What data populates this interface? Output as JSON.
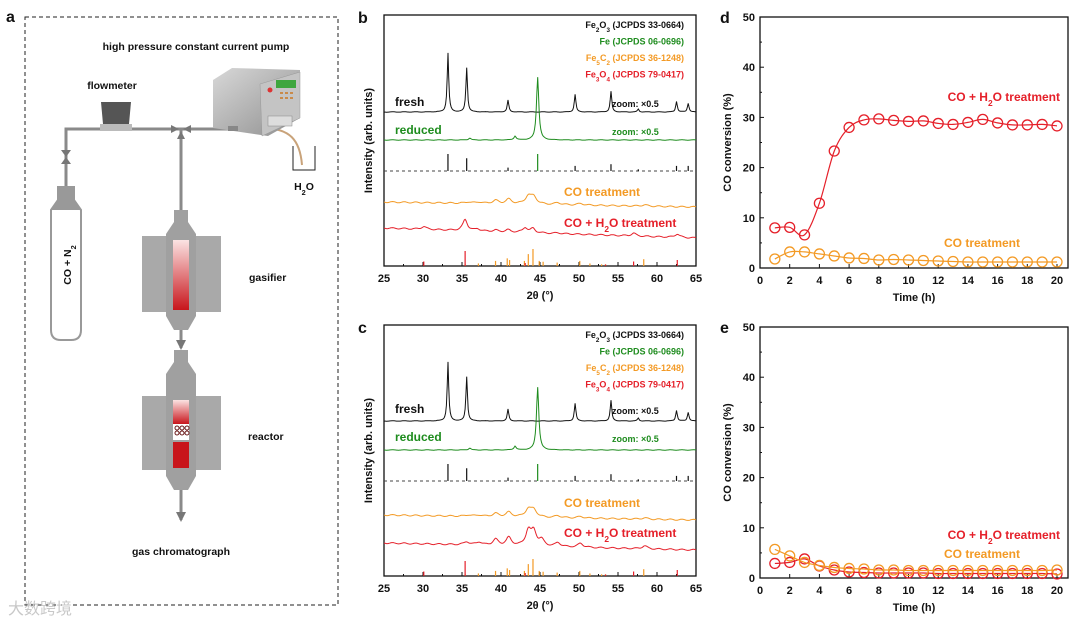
{
  "panel_letters": {
    "a": "a",
    "b": "b",
    "c": "c",
    "d": "d",
    "e": "e"
  },
  "diagram": {
    "pump": "high pressure constant current pump",
    "flowmeter": "flowmeter",
    "water": "H2O",
    "gas_cylinder": "CO + N2",
    "gasifier": "gasifier",
    "reactor": "reactor",
    "detector": "gas chromatograph"
  },
  "watermark": "大数跨境",
  "colors": {
    "black": "#111111",
    "green": "#1e8c1e",
    "orange": "#f39a25",
    "red": "#e5202a",
    "gray": "#9a9a9a"
  },
  "chart_data": [
    {
      "id": "b",
      "type": "line",
      "xlabel": "2θ (°)",
      "ylabel": "Intensity (arb. units)",
      "xlim": [
        25,
        65
      ],
      "xticks": [
        "25",
        "30",
        "35",
        "40",
        "45",
        "50",
        "55",
        "60",
        "65"
      ],
      "legend": [
        "Fe2O3 (JCPDS 33-0664)",
        "Fe (JCPDS 06-0696)",
        "Fe5C2 (JCPDS 36-1248)",
        "Fe3O4 (JCPDS 79-0417)"
      ],
      "series": [
        {
          "name": "fresh",
          "zoom": "zoom: ×0.5",
          "peaks": [
            [
              33.2,
              1.0
            ],
            [
              35.6,
              0.75
            ],
            [
              40.9,
              0.2
            ],
            [
              49.5,
              0.3
            ],
            [
              54.1,
              0.35
            ],
            [
              57.6,
              0.05
            ],
            [
              62.5,
              0.18
            ],
            [
              64.0,
              0.15
            ]
          ]
        },
        {
          "name": "reduced",
          "zoom": "zoom: ×0.5",
          "peaks": [
            [
              36.0,
              0.03
            ],
            [
              41.8,
              0.06
            ],
            [
              44.7,
              1.0
            ]
          ]
        },
        {
          "name": "CO treatment",
          "peaks": [
            [
              35.8,
              0.1
            ],
            [
              37.2,
              0.1
            ],
            [
              39.3,
              0.25
            ],
            [
              41.0,
              0.35
            ],
            [
              43.5,
              0.6
            ],
            [
              44.2,
              0.55
            ],
            [
              47.3,
              0.15
            ],
            [
              50.2,
              0.12
            ],
            [
              58.4,
              0.1
            ]
          ]
        },
        {
          "name": "CO + H2O treatment",
          "peaks": [
            [
              30.1,
              0.2
            ],
            [
              35.4,
              0.8
            ],
            [
              37.0,
              0.15
            ],
            [
              39.3,
              0.1
            ],
            [
              40.9,
              0.15
            ],
            [
              43.1,
              0.35
            ],
            [
              44.1,
              0.3
            ],
            [
              47.3,
              0.05
            ],
            [
              57.0,
              0.2
            ],
            [
              62.6,
              0.25
            ]
          ]
        }
      ],
      "references": {
        "Fe2O3": [
          [
            33.2,
            1.0
          ],
          [
            35.6,
            0.75
          ],
          [
            40.9,
            0.2
          ],
          [
            49.5,
            0.3
          ],
          [
            54.1,
            0.4
          ],
          [
            57.6,
            0.1
          ],
          [
            62.5,
            0.3
          ],
          [
            64.0,
            0.3
          ]
        ],
        "Fe": [
          [
            44.7,
            1.0
          ]
        ],
        "Fe5C2": [
          [
            35.4,
            0.1
          ],
          [
            37.1,
            0.15
          ],
          [
            39.3,
            0.3
          ],
          [
            40.8,
            0.45
          ],
          [
            41.1,
            0.35
          ],
          [
            43.0,
            0.3
          ],
          [
            43.5,
            0.7
          ],
          [
            44.1,
            1.0
          ],
          [
            44.9,
            0.3
          ],
          [
            45.4,
            0.25
          ],
          [
            47.2,
            0.2
          ],
          [
            50.1,
            0.3
          ],
          [
            51.4,
            0.15
          ],
          [
            52.9,
            0.1
          ],
          [
            53.4,
            0.1
          ],
          [
            58.3,
            0.4
          ]
        ],
        "Fe3O4": [
          [
            30.1,
            0.3
          ],
          [
            35.4,
            1.0
          ],
          [
            43.1,
            0.2
          ],
          [
            53.4,
            0.1
          ],
          [
            57.0,
            0.3
          ],
          [
            62.6,
            0.4
          ]
        ]
      }
    },
    {
      "id": "c",
      "type": "line",
      "xlabel": "2θ (°)",
      "ylabel": "Intensity (arb. units)",
      "xlim": [
        25,
        65
      ],
      "xticks": [
        "25",
        "30",
        "35",
        "40",
        "45",
        "50",
        "55",
        "60",
        "65"
      ],
      "legend": [
        "Fe2O3 (JCPDS 33-0664)",
        "Fe (JCPDS 06-0696)",
        "Fe5C2 (JCPDS 36-1248)",
        "Fe3O4 (JCPDS 79-0417)"
      ],
      "series": [
        {
          "name": "fresh",
          "zoom": "zoom: ×0.5",
          "peaks": [
            [
              33.2,
              1.0
            ],
            [
              35.6,
              0.75
            ],
            [
              40.9,
              0.2
            ],
            [
              49.5,
              0.3
            ],
            [
              54.1,
              0.35
            ],
            [
              57.6,
              0.05
            ],
            [
              62.5,
              0.18
            ],
            [
              64.0,
              0.15
            ]
          ]
        },
        {
          "name": "reduced",
          "zoom": "zoom: ×0.5",
          "peaks": [
            [
              36.0,
              0.03
            ],
            [
              41.8,
              0.06
            ],
            [
              44.7,
              1.0
            ]
          ]
        },
        {
          "name": "CO treatment",
          "peaks": [
            [
              35.8,
              0.1
            ],
            [
              37.2,
              0.1
            ],
            [
              39.3,
              0.25
            ],
            [
              41.0,
              0.35
            ],
            [
              43.5,
              0.6
            ],
            [
              44.2,
              0.55
            ],
            [
              47.3,
              0.15
            ],
            [
              50.2,
              0.12
            ],
            [
              58.4,
              0.1
            ]
          ]
        },
        {
          "name": "CO + H2O treatment",
          "peaks": [
            [
              35.6,
              0.15
            ],
            [
              37.2,
              0.15
            ],
            [
              39.3,
              0.3
            ],
            [
              41.0,
              0.4
            ],
            [
              43.5,
              0.75
            ],
            [
              44.2,
              0.7
            ],
            [
              45.2,
              0.3
            ],
            [
              47.3,
              0.2
            ],
            [
              50.2,
              0.2
            ],
            [
              58.4,
              0.15
            ]
          ]
        }
      ],
      "references": {
        "Fe2O3": [
          [
            33.2,
            1.0
          ],
          [
            35.6,
            0.75
          ],
          [
            40.9,
            0.2
          ],
          [
            49.5,
            0.3
          ],
          [
            54.1,
            0.4
          ],
          [
            57.6,
            0.1
          ],
          [
            62.5,
            0.3
          ],
          [
            64.0,
            0.3
          ]
        ],
        "Fe": [
          [
            44.7,
            1.0
          ]
        ],
        "Fe5C2": [
          [
            35.4,
            0.1
          ],
          [
            37.1,
            0.15
          ],
          [
            39.3,
            0.3
          ],
          [
            40.8,
            0.45
          ],
          [
            41.1,
            0.35
          ],
          [
            43.0,
            0.3
          ],
          [
            43.5,
            0.7
          ],
          [
            44.1,
            1.0
          ],
          [
            44.9,
            0.3
          ],
          [
            45.4,
            0.25
          ],
          [
            47.2,
            0.2
          ],
          [
            50.1,
            0.3
          ],
          [
            51.4,
            0.15
          ],
          [
            52.9,
            0.1
          ],
          [
            53.4,
            0.1
          ],
          [
            58.3,
            0.4
          ]
        ],
        "Fe3O4": [
          [
            30.1,
            0.3
          ],
          [
            35.4,
            1.0
          ],
          [
            43.1,
            0.2
          ],
          [
            53.4,
            0.1
          ],
          [
            57.0,
            0.3
          ],
          [
            62.6,
            0.4
          ]
        ]
      }
    },
    {
      "id": "d",
      "type": "line",
      "xlabel": "Time (h)",
      "ylabel": "CO conversion (%)",
      "xlim": [
        0,
        20.5
      ],
      "ylim": [
        0,
        50
      ],
      "xticks": [
        "0",
        "2",
        "4",
        "6",
        "8",
        "10",
        "12",
        "14",
        "16",
        "18",
        "20"
      ],
      "yticks": [
        "0",
        "10",
        "20",
        "30",
        "40",
        "50"
      ],
      "x": [
        1,
        2,
        3,
        4,
        5,
        6,
        7,
        8,
        9,
        10,
        11,
        12,
        13,
        14,
        15,
        16,
        17,
        18,
        19,
        20
      ],
      "series": [
        {
          "name": "CO + H2O treatment",
          "values": [
            8.0,
            8.1,
            6.6,
            12.9,
            23.3,
            28.0,
            29.5,
            29.7,
            29.4,
            29.2,
            29.3,
            28.8,
            28.6,
            29.0,
            29.6,
            28.9,
            28.5,
            28.5,
            28.6,
            28.3
          ]
        },
        {
          "name": "CO treatment",
          "values": [
            1.8,
            3.2,
            3.2,
            2.8,
            2.4,
            2.0,
            1.9,
            1.6,
            1.7,
            1.6,
            1.5,
            1.4,
            1.3,
            1.2,
            1.2,
            1.2,
            1.2,
            1.2,
            1.2,
            1.2
          ]
        }
      ]
    },
    {
      "id": "e",
      "type": "line",
      "xlabel": "Time (h)",
      "ylabel": "CO conversion (%)",
      "xlim": [
        0,
        20.5
      ],
      "ylim": [
        0,
        50
      ],
      "xticks": [
        "0",
        "2",
        "4",
        "6",
        "8",
        "10",
        "12",
        "14",
        "16",
        "18",
        "20"
      ],
      "yticks": [
        "0",
        "10",
        "20",
        "30",
        "40",
        "50"
      ],
      "x": [
        1,
        2,
        3,
        4,
        5,
        6,
        7,
        8,
        9,
        10,
        11,
        12,
        13,
        14,
        15,
        16,
        17,
        18,
        19,
        20
      ],
      "series": [
        {
          "name": "CO + H2O treatment",
          "values": [
            2.9,
            3.1,
            3.8,
            2.4,
            1.6,
            1.2,
            1.1,
            1.0,
            1.0,
            1.0,
            1.0,
            0.9,
            0.9,
            0.9,
            0.9,
            0.9,
            0.9,
            0.9,
            0.9,
            0.8
          ]
        },
        {
          "name": "CO treatment",
          "values": [
            5.7,
            4.4,
            3.1,
            2.5,
            2.1,
            1.9,
            1.8,
            1.6,
            1.6,
            1.5,
            1.5,
            1.5,
            1.5,
            1.5,
            1.5,
            1.5,
            1.5,
            1.5,
            1.5,
            1.6
          ]
        }
      ]
    }
  ]
}
